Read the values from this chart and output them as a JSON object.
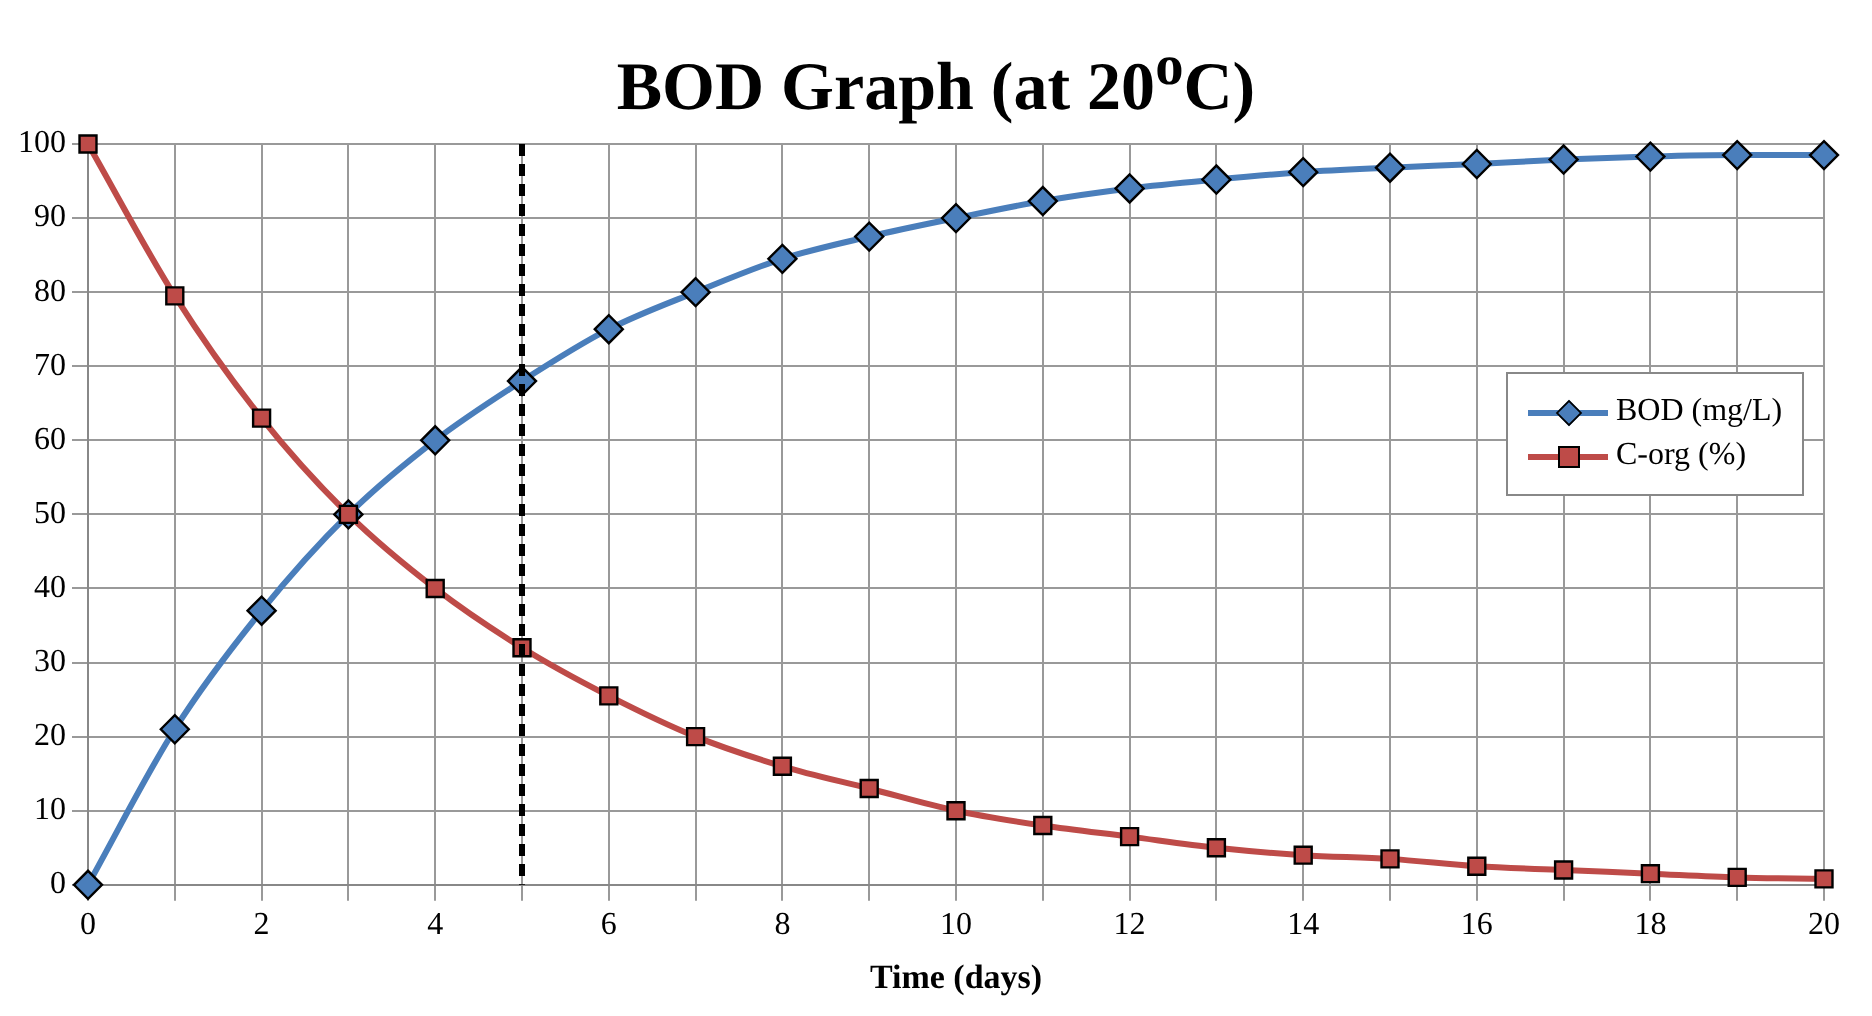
{
  "chart_data": {
    "type": "line",
    "title": "BOD Graph (at 20$^{o}$C)",
    "xlabel": "Time (days)",
    "x": [
      0,
      1,
      2,
      3,
      4,
      5,
      6,
      7,
      8,
      9,
      10,
      11,
      12,
      13,
      14,
      15,
      16,
      17,
      18,
      19,
      20
    ],
    "series": [
      {
        "name": "BOD (mg/L)",
        "color": "#4a7ebb",
        "marker": "diamond",
        "values": [
          0,
          21,
          37,
          50,
          60,
          68,
          75,
          80,
          84.5,
          87.5,
          90,
          92.3,
          94,
          95.2,
          96.2,
          96.8,
          97.3,
          97.9,
          98.3,
          98.5,
          98.5
        ]
      },
      {
        "name": "C-org (%)",
        "color": "#be4b48",
        "marker": "square",
        "values": [
          100,
          79.5,
          63,
          50,
          40,
          32,
          25.5,
          20,
          16,
          13,
          10,
          8,
          6.5,
          5,
          4,
          3.5,
          2.5,
          2,
          1.5,
          1,
          0.8
        ]
      }
    ],
    "xlim": [
      0,
      20
    ],
    "xticks": [
      0,
      {
        "value": 1,
        "label": null
      },
      2,
      {
        "value": 3,
        "label": null
      },
      4,
      {
        "value": 5,
        "label": null
      },
      6,
      {
        "value": 7,
        "label": null
      },
      8,
      {
        "value": 9,
        "label": null
      },
      10,
      {
        "value": 11,
        "label": null
      },
      12,
      {
        "value": 13,
        "label": null
      },
      14,
      {
        "value": 15,
        "label": null
      },
      16,
      {
        "value": 17,
        "label": null
      },
      18,
      {
        "value": 19,
        "label": null
      },
      20
    ],
    "ylim": [
      0,
      100
    ],
    "yticks": [
      0,
      10,
      20,
      30,
      40,
      50,
      60,
      70,
      80,
      90,
      100
    ],
    "ref_lines": [
      {
        "axis": "x",
        "value": 5,
        "color": "#000000",
        "line_style": "dashed"
      }
    ],
    "grid": true,
    "legend": "right",
    "line_style": "solid"
  }
}
